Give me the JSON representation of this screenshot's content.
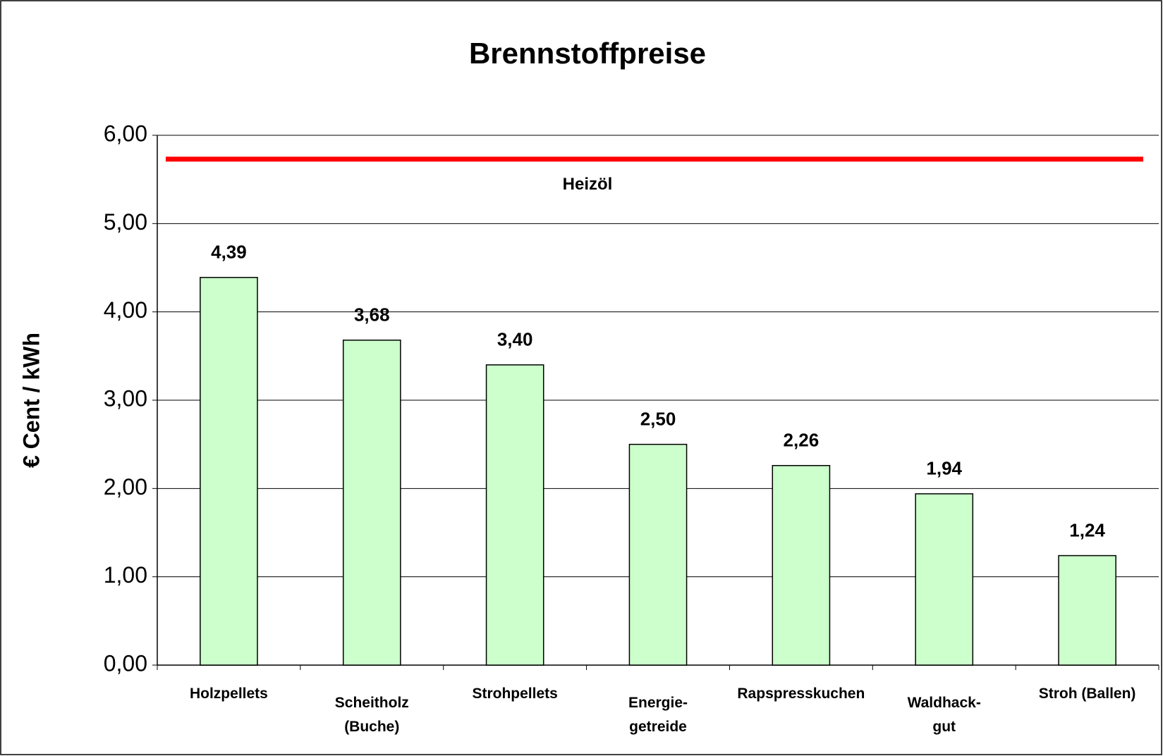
{
  "chart_data": {
    "type": "bar",
    "title": "Brennstoffpreise",
    "y_label": "€ Cent / kWh",
    "categories": [
      "Holzpellets",
      "Scheitholz\n(Buche)",
      "Strohpellets",
      "Energie-\ngetreide",
      "Rapspresskuchen",
      "Waldhack-\ngut",
      "Stroh (Ballen)"
    ],
    "values": [
      4.39,
      3.68,
      3.4,
      2.5,
      2.26,
      1.94,
      1.24
    ],
    "value_labels": [
      "4,39",
      "3,68",
      "3,40",
      "2,50",
      "2,26",
      "1,94",
      "1,24"
    ],
    "color": "#ccffcc",
    "ylim": [
      0,
      6
    ],
    "yticks": [
      {
        "value": 0,
        "label": "0,00"
      },
      {
        "value": 1,
        "label": "1,00"
      },
      {
        "value": 2,
        "label": "2,00"
      },
      {
        "value": 3,
        "label": "3,00"
      },
      {
        "value": 4,
        "label": "4,00"
      },
      {
        "value": 5,
        "label": "5,00"
      },
      {
        "value": 6,
        "label": "6,00"
      }
    ],
    "grid": true,
    "reference_lines": [
      {
        "value": 5.73,
        "label": "Heizöl",
        "color": "#ff0000"
      }
    ]
  }
}
